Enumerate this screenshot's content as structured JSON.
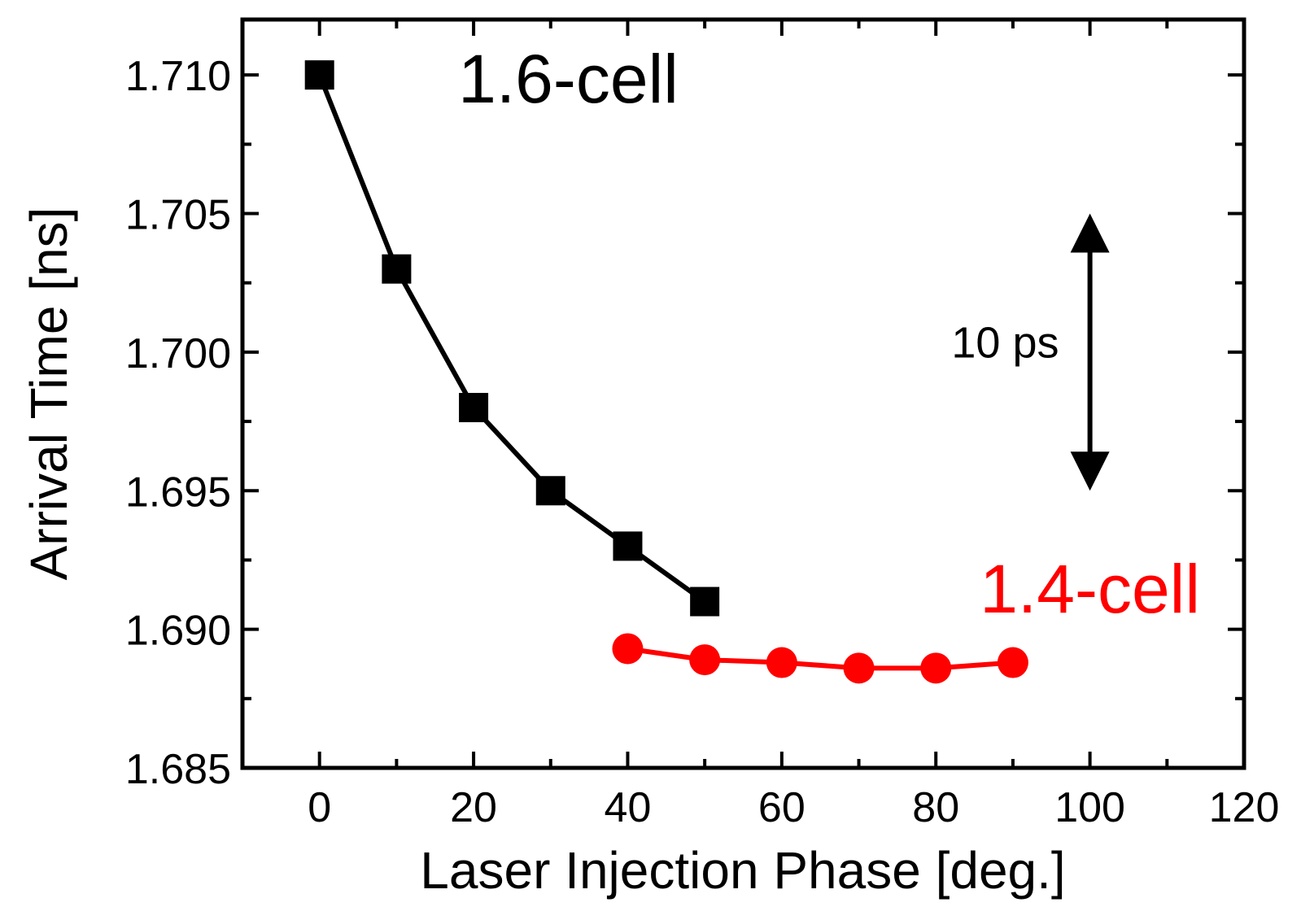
{
  "chart_data": {
    "type": "line",
    "title": "",
    "xlabel": "Laser Injection Phase [deg.]",
    "ylabel": "Arrival Time [ns]",
    "xlim": [
      -10,
      120
    ],
    "ylim": [
      1.685,
      1.712
    ],
    "xticks": [
      0,
      20,
      40,
      60,
      80,
      100,
      120
    ],
    "xtick_labels": [
      "0",
      "20",
      "40",
      "60",
      "80",
      "100",
      "120"
    ],
    "yticks": [
      1.685,
      1.69,
      1.695,
      1.7,
      1.705,
      1.71
    ],
    "ytick_labels": [
      "1.685",
      "1.690",
      "1.695",
      "1.700",
      "1.705",
      "1.710"
    ],
    "grid": false,
    "series": [
      {
        "name": "1.6-cell",
        "color": "#000000",
        "marker": "square",
        "x": [
          0,
          10,
          20,
          30,
          40,
          50
        ],
        "y": [
          1.71,
          1.703,
          1.698,
          1.695,
          1.693,
          1.691
        ]
      },
      {
        "name": "1.4-cell",
        "color": "#ff0000",
        "marker": "circle",
        "x": [
          40,
          50,
          60,
          70,
          80,
          90
        ],
        "y": [
          1.6893,
          1.6889,
          1.6888,
          1.6886,
          1.6886,
          1.6888
        ]
      }
    ],
    "annotations": [
      {
        "id": "label_16",
        "text": "1.6-cell",
        "color": "#000000",
        "at": [
          18,
          1.709
        ]
      },
      {
        "id": "label_14",
        "text": "1.4-cell",
        "color": "#ff0000",
        "at": [
          100,
          1.6906
        ]
      },
      {
        "id": "scale_text",
        "text": "10 ps",
        "color": "#000000",
        "at": [
          89,
          1.6998
        ]
      },
      {
        "id": "scale_arrow",
        "text": "",
        "x": 100,
        "y_range": [
          1.705,
          1.695
        ]
      }
    ]
  }
}
